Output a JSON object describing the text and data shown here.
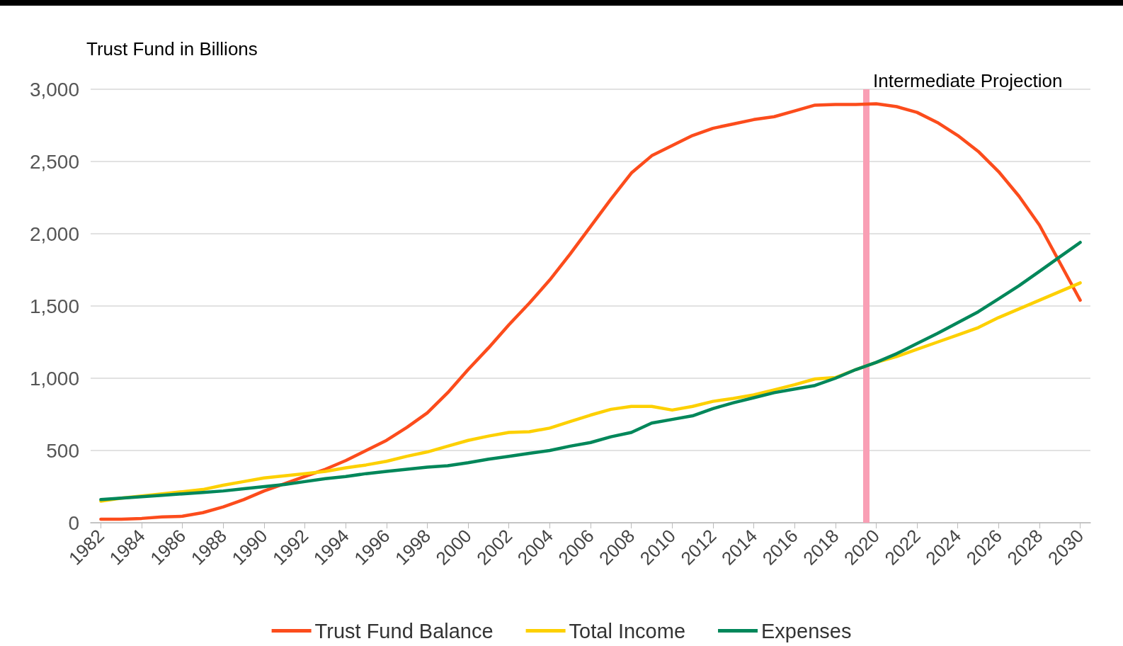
{
  "chart_data": {
    "type": "line",
    "ylabel": "Trust Fund in Billions",
    "x": [
      1982,
      1983,
      1984,
      1985,
      1986,
      1987,
      1988,
      1989,
      1990,
      1991,
      1992,
      1993,
      1994,
      1995,
      1996,
      1997,
      1998,
      1999,
      2000,
      2001,
      2002,
      2003,
      2004,
      2005,
      2006,
      2007,
      2008,
      2009,
      2010,
      2011,
      2012,
      2013,
      2014,
      2015,
      2016,
      2017,
      2018,
      2019,
      2020,
      2021,
      2022,
      2023,
      2024,
      2025,
      2026,
      2027,
      2028,
      2029,
      2030
    ],
    "series": [
      {
        "name": "Trust Fund Balance",
        "color": "#fc4c1c",
        "values": [
          25,
          25,
          30,
          40,
          45,
          70,
          110,
          160,
          220,
          270,
          320,
          370,
          430,
          500,
          570,
          660,
          760,
          900,
          1060,
          1210,
          1370,
          1520,
          1680,
          1860,
          2050,
          2240,
          2420,
          2540,
          2610,
          2680,
          2730,
          2760,
          2790,
          2810,
          2850,
          2890,
          2895,
          2895,
          2900,
          2880,
          2840,
          2770,
          2680,
          2570,
          2430,
          2260,
          2060,
          1800,
          1540
        ]
      },
      {
        "name": "Total Income",
        "color": "#fdd000",
        "values": [
          150,
          170,
          185,
          200,
          215,
          230,
          260,
          285,
          310,
          325,
          340,
          355,
          380,
          400,
          425,
          460,
          490,
          530,
          570,
          600,
          625,
          630,
          655,
          700,
          745,
          785,
          805,
          805,
          780,
          805,
          840,
          860,
          885,
          920,
          955,
          995,
          1005,
          1060,
          1110,
          1150,
          1200,
          1250,
          1300,
          1350,
          1420,
          1480,
          1540,
          1600,
          1660
        ]
      },
      {
        "name": "Expenses",
        "color": "#00875a",
        "values": [
          160,
          170,
          180,
          190,
          200,
          210,
          220,
          235,
          250,
          265,
          285,
          305,
          320,
          340,
          355,
          370,
          385,
          395,
          415,
          440,
          460,
          480,
          500,
          530,
          555,
          595,
          625,
          690,
          715,
          740,
          790,
          830,
          865,
          900,
          925,
          950,
          1000,
          1060,
          1110,
          1170,
          1240,
          1310,
          1385,
          1460,
          1550,
          1640,
          1740,
          1840,
          1940
        ]
      }
    ],
    "xlim": [
      1981.5,
      2030.5
    ],
    "xticks": [
      1982,
      1984,
      1986,
      1988,
      1990,
      1992,
      1994,
      1996,
      1998,
      2000,
      2002,
      2004,
      2006,
      2008,
      2010,
      2012,
      2014,
      2016,
      2018,
      2020,
      2022,
      2024,
      2026,
      2028,
      2030
    ],
    "ylim": [
      0,
      3000
    ],
    "yticks": [
      {
        "value": 0,
        "label": "0"
      },
      {
        "value": 500,
        "label": "500"
      },
      {
        "value": 1000,
        "label": "1,000"
      },
      {
        "value": 1500,
        "label": "1,500"
      },
      {
        "value": 2000,
        "label": "2,000"
      },
      {
        "value": 2500,
        "label": "2,500"
      },
      {
        "value": 3000,
        "label": "3,000"
      }
    ],
    "ref_lines": [
      {
        "axis": "x",
        "value": 2019.5,
        "label": "Intermediate Projection",
        "color": "#f99fb5"
      }
    ],
    "grid": "y",
    "legend": "bottom",
    "marker": "none",
    "line_style": "solid"
  }
}
